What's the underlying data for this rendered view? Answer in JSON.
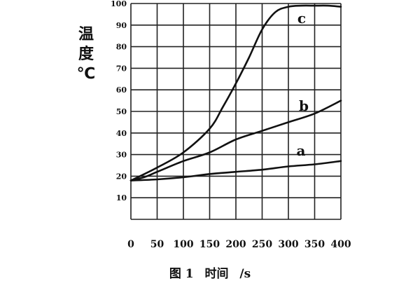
{
  "chart_data": {
    "type": "line",
    "ylabel": [
      "温",
      "度",
      "℃"
    ],
    "caption": {
      "figure": "图 1",
      "xlabel": "时间",
      "unit": "/s"
    },
    "xlim": [
      0,
      400
    ],
    "ylim": [
      0,
      100
    ],
    "x_ticks": [
      0,
      50,
      100,
      150,
      200,
      250,
      300,
      350,
      400
    ],
    "y_ticks": [
      10,
      20,
      30,
      40,
      50,
      60,
      70,
      80,
      90,
      100
    ],
    "grid": true,
    "series": [
      {
        "name": "a",
        "x": [
          0,
          50,
          100,
          150,
          200,
          250,
          300,
          350,
          400
        ],
        "y": [
          18,
          18.5,
          19.5,
          21,
          22,
          23,
          24.5,
          25.5,
          27
        ]
      },
      {
        "name": "b",
        "x": [
          0,
          25,
          50,
          100,
          150,
          200,
          250,
          300,
          350,
          400
        ],
        "y": [
          18,
          19.5,
          22,
          27,
          31,
          37,
          41,
          45,
          49,
          55
        ]
      },
      {
        "name": "c",
        "x": [
          0,
          50,
          100,
          150,
          175,
          200,
          225,
          250,
          275,
          300,
          325,
          350,
          375,
          400
        ],
        "y": [
          18,
          24,
          31,
          42,
          52,
          63,
          75,
          88,
          96,
          98.5,
          99,
          99,
          99,
          98.5
        ]
      }
    ]
  }
}
